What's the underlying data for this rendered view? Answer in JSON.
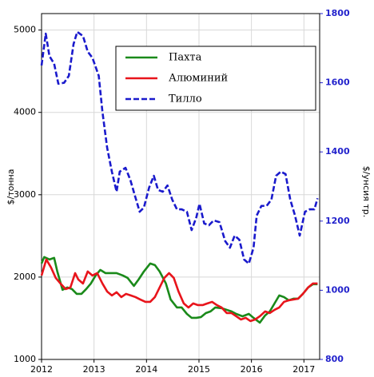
{
  "chart_data": {
    "type": "line",
    "y_label": "$/тонна",
    "y2_label": "$/унсия тр.",
    "xlim": [
      2012,
      2017.3
    ],
    "xticks": [
      2012,
      2013,
      2014,
      2015,
      2016,
      2017
    ],
    "ylim": [
      1000,
      5200
    ],
    "yticks": [
      1000,
      2000,
      3000,
      4000,
      5000
    ],
    "y2lim": [
      800,
      1800
    ],
    "y2ticks": [
      800,
      1000,
      1200,
      1400,
      1600,
      1800
    ],
    "grid": true,
    "legend": "top",
    "series": [
      {
        "name": "Пахта",
        "color": "#1a8a1a",
        "style": "solid",
        "x": [
          2012,
          2012.05,
          2012.15,
          2012.24,
          2012.3,
          2012.4,
          2012.49,
          2012.58,
          2012.67,
          2012.76,
          2012.85,
          2012.94,
          2013.03,
          2013.12,
          2013.22,
          2013.34,
          2013.43,
          2013.55,
          2013.64,
          2013.76,
          2013.85,
          2013.95,
          2014.07,
          2014.16,
          2014.25,
          2014.37,
          2014.46,
          2014.58,
          2014.67,
          2014.77,
          2014.86,
          2014.95,
          2015.04,
          2015.13,
          2015.22,
          2015.31,
          2015.44,
          2015.53,
          2015.62,
          2015.71,
          2015.83,
          2015.95,
          2016.04,
          2016.16,
          2016.26,
          2016.35,
          2016.44,
          2016.53,
          2016.62,
          2016.71,
          2016.8,
          2016.89,
          2016.98,
          2017.08,
          2017.17,
          2017.26
        ],
        "values": [
          2165,
          2243,
          2214,
          2233,
          2068,
          1845,
          1874,
          1854,
          1796,
          1796,
          1854,
          1922,
          2019,
          2087,
          2048,
          2048,
          2048,
          2019,
          1990,
          1893,
          1971,
          2068,
          2165,
          2146,
          2068,
          1922,
          1728,
          1631,
          1631,
          1553,
          1505,
          1505,
          1515,
          1563,
          1583,
          1631,
          1621,
          1602,
          1583,
          1553,
          1524,
          1553,
          1505,
          1447,
          1534,
          1583,
          1680,
          1777,
          1757,
          1718,
          1738,
          1738,
          1796,
          1874,
          1913,
          1913
        ]
      },
      {
        "name": "Алюминий",
        "color": "#e8141b",
        "style": "solid",
        "x": [
          2012,
          2012.09,
          2012.18,
          2012.27,
          2012.36,
          2012.46,
          2012.55,
          2012.64,
          2012.7,
          2012.79,
          2012.88,
          2012.97,
          2013.06,
          2013.16,
          2013.25,
          2013.34,
          2013.43,
          2013.52,
          2013.61,
          2013.7,
          2013.79,
          2013.88,
          2013.98,
          2014.07,
          2014.16,
          2014.25,
          2014.34,
          2014.43,
          2014.52,
          2014.61,
          2014.71,
          2014.8,
          2014.89,
          2014.98,
          2015.07,
          2015.16,
          2015.25,
          2015.34,
          2015.43,
          2015.53,
          2015.62,
          2015.71,
          2015.8,
          2015.89,
          2015.98,
          2016.07,
          2016.16,
          2016.26,
          2016.35,
          2016.44,
          2016.53,
          2016.62,
          2016.71,
          2016.8,
          2016.89,
          2016.98,
          2017.08,
          2017.17,
          2017.26
        ],
        "values": [
          2019,
          2214,
          2117,
          1990,
          1922,
          1854,
          1874,
          2048,
          1971,
          1922,
          2068,
          2019,
          2048,
          1922,
          1825,
          1777,
          1816,
          1757,
          1796,
          1777,
          1757,
          1728,
          1699,
          1699,
          1757,
          1874,
          1990,
          2048,
          1990,
          1825,
          1680,
          1631,
          1680,
          1660,
          1660,
          1680,
          1699,
          1660,
          1631,
          1563,
          1563,
          1524,
          1485,
          1505,
          1466,
          1485,
          1524,
          1583,
          1563,
          1602,
          1631,
          1699,
          1718,
          1728,
          1738,
          1796,
          1874,
          1922,
          1922
        ]
      },
      {
        "name": "Тилло",
        "color": "#1a1acc",
        "style": "dashed",
        "axis": "y2",
        "x": [
          2012,
          2012.08,
          2012.15,
          2012.24,
          2012.32,
          2012.43,
          2012.52,
          2012.61,
          2012.68,
          2012.79,
          2012.88,
          2012.97,
          2013.09,
          2013.16,
          2013.25,
          2013.34,
          2013.43,
          2013.49,
          2013.6,
          2013.69,
          2013.78,
          2013.87,
          2013.95,
          2014.05,
          2014.14,
          2014.22,
          2014.31,
          2014.4,
          2014.49,
          2014.58,
          2014.67,
          2014.77,
          2014.86,
          2014.95,
          2015.01,
          2015.1,
          2015.19,
          2015.28,
          2015.39,
          2015.5,
          2015.59,
          2015.68,
          2015.77,
          2015.86,
          2015.95,
          2016.04,
          2016.1,
          2016.19,
          2016.29,
          2016.38,
          2016.47,
          2016.56,
          2016.65,
          2016.74,
          2016.83,
          2016.92,
          2017.02,
          2017.11,
          2017.2,
          2017.26
        ],
        "values": [
          1650,
          1742,
          1677,
          1655,
          1597,
          1600,
          1620,
          1712,
          1747,
          1735,
          1690,
          1672,
          1620,
          1516,
          1412,
          1343,
          1285,
          1343,
          1354,
          1320,
          1273,
          1227,
          1239,
          1297,
          1331,
          1290,
          1285,
          1303,
          1262,
          1234,
          1234,
          1227,
          1174,
          1211,
          1250,
          1193,
          1188,
          1202,
          1197,
          1142,
          1123,
          1158,
          1146,
          1089,
          1077,
          1123,
          1216,
          1244,
          1244,
          1262,
          1331,
          1343,
          1336,
          1262,
          1216,
          1158,
          1227,
          1234,
          1234,
          1266
        ]
      }
    ]
  }
}
